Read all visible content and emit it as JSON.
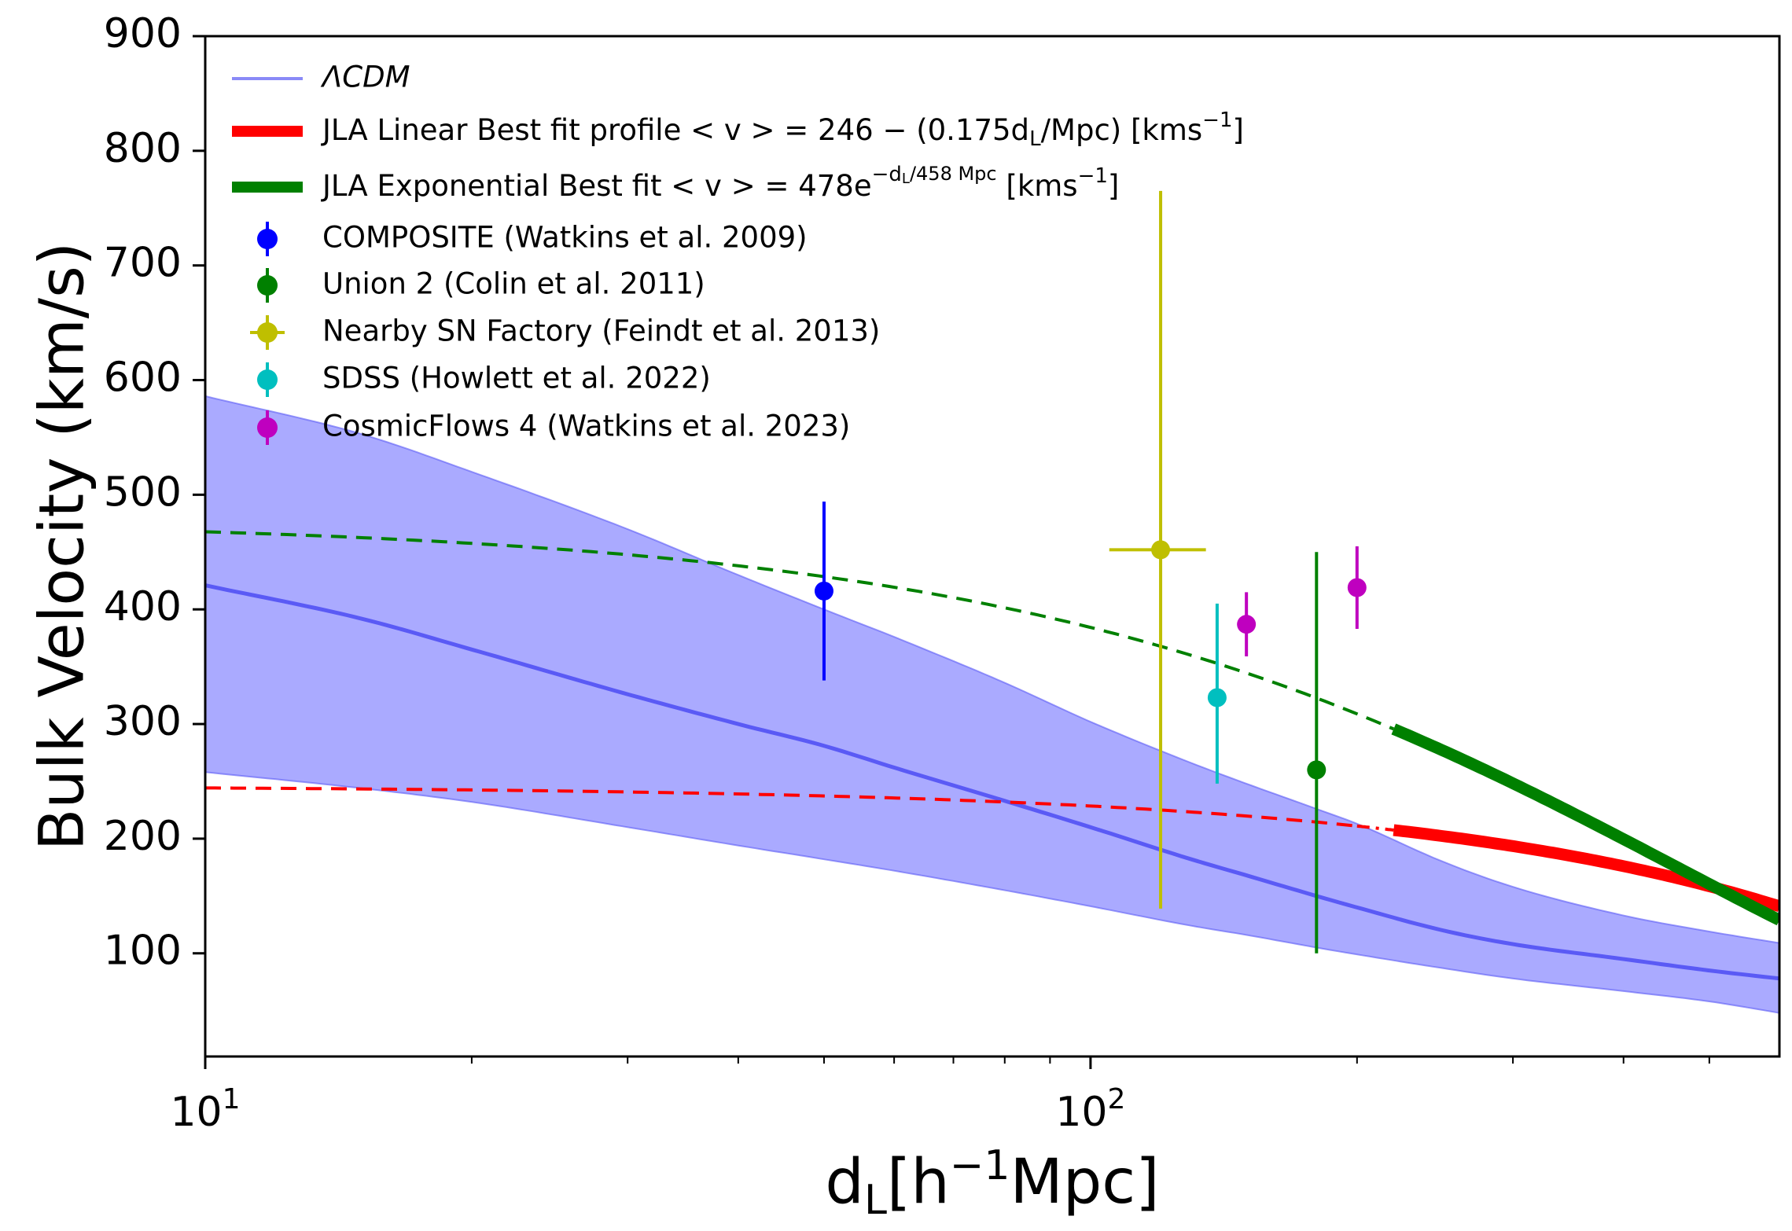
{
  "chart_data": {
    "type": "line",
    "x_scale": "log",
    "y_scale": "linear",
    "xlim": [
      10,
      600
    ],
    "ylim": [
      10,
      900
    ],
    "xlabel": "d_L[h^{-1}Mpc]",
    "ylabel": "Bulk Velocity (km/s)",
    "x_ticks": [
      {
        "value": 10,
        "base": "10",
        "exp": "1"
      },
      {
        "value": 100,
        "base": "10",
        "exp": "2"
      }
    ],
    "y_ticks": [
      100,
      200,
      300,
      400,
      500,
      600,
      700,
      800,
      900
    ],
    "grid": false,
    "legend_position": "upper-left",
    "colors": {
      "lcdm": "#5a5af5",
      "band": "#aaaaff",
      "linear": "#ff0000",
      "exponential": "#008000",
      "composite": "#0000ff",
      "union2": "#008000",
      "snfactory": "#bfbf00",
      "sdss": "#00bfbf",
      "cf4": "#bf00bf"
    },
    "lcdm": {
      "legend": "ΛCDM",
      "x": [
        10,
        15,
        20,
        30,
        40,
        50,
        60,
        80,
        100,
        130,
        150,
        180,
        200,
        250,
        300,
        400,
        500,
        600
      ],
      "mean": [
        421,
        392,
        365,
        326,
        300,
        281,
        262,
        233,
        210,
        182,
        168,
        150,
        140,
        120,
        108,
        95,
        85,
        78
      ],
      "lower": [
        258,
        244,
        232,
        210,
        194,
        182,
        172,
        155,
        141,
        124,
        116,
        105,
        99,
        87,
        78,
        67,
        58,
        48
      ],
      "upper": [
        586,
        553,
        520,
        470,
        430,
        400,
        376,
        336,
        302,
        266,
        248,
        226,
        213,
        180,
        158,
        133,
        119,
        109
      ]
    },
    "linear_fit": {
      "legend_prefix": "JLA Linear Best fit profile ",
      "legend_formula": "< v > = 246 − (0.175d",
      "legend_sub": "L",
      "legend_rest": "/Mpc) [kms",
      "legend_sup": "−1",
      "legend_end": "]",
      "intercept": 246,
      "slope": 0.175,
      "dashed_range": [
        10,
        200
      ],
      "dashdot_range": [
        200,
        220
      ],
      "solid_range": [
        220,
        600
      ]
    },
    "exponential_fit": {
      "legend_prefix": "JLA Exponential Best fit ",
      "legend_formula": "< v > = 478e",
      "legend_exp": "−d",
      "legend_exp_sub": "L",
      "legend_exp_rest": "/458 Mpc",
      "legend_unit": " [kms",
      "legend_sup": "−1",
      "legend_end": "]",
      "amplitude": 478,
      "scale": 458,
      "dashed_range": [
        10,
        220
      ],
      "solid_range": [
        220,
        600
      ]
    },
    "datasets": [
      {
        "name": "COMPOSITE (Watkins et al. 2009)",
        "color_key": "composite",
        "x": 50,
        "y": 416,
        "yerr_low": 78,
        "yerr_high": 78
      },
      {
        "name": "Union 2 (Colin et al. 2011)",
        "color_key": "union2",
        "x": 180,
        "y": 260,
        "yerr_low": 160,
        "yerr_high": 190
      },
      {
        "name": "Nearby SN Factory (Feindt et al. 2013)",
        "color_key": "snfactory",
        "x": 120,
        "y": 452,
        "yerr_low": 313,
        "yerr_high": 313,
        "xerr_low": 15,
        "xerr_high": 15
      },
      {
        "name": "SDSS (Howlett et al. 2022)",
        "color_key": "sdss",
        "x": 139,
        "y": 323,
        "yerr_low": 75,
        "yerr_high": 82
      },
      {
        "name": "CosmicFlows 4 (Watkins et al. 2023)",
        "color_key": "cf4",
        "x": 150,
        "y": 387,
        "yerr_low": 28,
        "yerr_high": 28
      },
      {
        "name": "CosmicFlows 4 (Watkins et al. 2023)",
        "color_key": "cf4",
        "x": 200,
        "y": 419,
        "yerr_low": 36,
        "yerr_high": 36,
        "in_legend": false
      }
    ]
  }
}
